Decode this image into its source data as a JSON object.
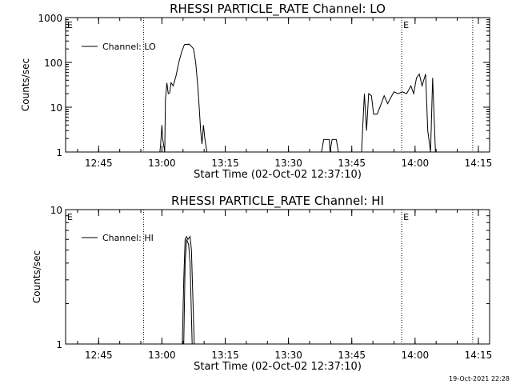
{
  "chart_data": [
    {
      "type": "line",
      "title": "RHESSI PARTICLE_RATE Channel: LO",
      "xlabel": "Start Time (02-Oct-02 12:37:10)",
      "ylabel": "Counts/sec",
      "yscale": "log",
      "xlim": [
        "12:37:10",
        "14:17:40"
      ],
      "ylim": [
        1,
        1000
      ],
      "x_ticks": [
        "12:45",
        "13:00",
        "13:15",
        "13:30",
        "13:45",
        "14:00",
        "14:15"
      ],
      "y_ticks": [
        "1",
        "10",
        "100",
        "1000"
      ],
      "legend": "top-left",
      "grid": false,
      "markers": [
        {
          "x": "12:55:40",
          "label": ""
        },
        {
          "x": "12:37:10",
          "label": "E"
        },
        {
          "x": "13:56:50",
          "label": "E"
        },
        {
          "x": "14:13:40",
          "label": ""
        }
      ],
      "series": [
        {
          "name": "Channel: LO",
          "segments": [
            [
              [
                "12:59:30",
                1
              ],
              [
                "12:59:40",
                1.4
              ],
              [
                "13:00:00",
                4.0
              ],
              [
                "13:00:10",
                2.0
              ],
              [
                "13:00:40",
                1.0
              ],
              [
                "13:00:50",
                15
              ],
              [
                "13:01:10",
                35
              ],
              [
                "13:01:30",
                20
              ],
              [
                "13:01:50",
                21
              ],
              [
                "13:02:10",
                35
              ],
              [
                "13:02:40",
                30
              ],
              [
                "13:03:20",
                50
              ],
              [
                "13:04:00",
                100
              ],
              [
                "13:04:40",
                170
              ],
              [
                "13:05:20",
                250
              ],
              [
                "13:06:30",
                255
              ],
              [
                "13:07:30",
                200
              ],
              [
                "13:08:00",
                100
              ],
              [
                "13:08:30",
                30
              ],
              [
                "13:08:50",
                10
              ],
              [
                "13:09:10",
                3.0
              ],
              [
                "13:09:30",
                1.5
              ],
              [
                "13:09:50",
                4.0
              ],
              [
                "13:10:10",
                2.0
              ],
              [
                "13:10:40",
                1.0
              ]
            ],
            [
              [
                "13:37:50",
                1
              ],
              [
                "13:38:20",
                1.9
              ],
              [
                "13:39:40",
                1.9
              ],
              [
                "13:39:50",
                1.0
              ],
              [
                "13:40:20",
                1.9
              ],
              [
                "13:41:20",
                1.9
              ],
              [
                "13:41:50",
                1.0
              ]
            ],
            [
              [
                "13:47:20",
                1
              ],
              [
                "13:47:40",
                5
              ],
              [
                "13:48:00",
                20
              ],
              [
                "13:48:30",
                3.0
              ],
              [
                "13:49:00",
                20
              ],
              [
                "13:49:40",
                18
              ],
              [
                "13:50:10",
                7
              ],
              [
                "13:51:00",
                7
              ],
              [
                "13:52:00",
                12
              ],
              [
                "13:52:40",
                18
              ],
              [
                "13:53:30",
                12
              ],
              [
                "13:54:10",
                16
              ],
              [
                "13:55:00",
                22
              ],
              [
                "13:56:00",
                20
              ],
              [
                "13:57:00",
                22
              ],
              [
                "13:58:00",
                20
              ],
              [
                "13:59:00",
                30
              ],
              [
                "13:59:40",
                20
              ],
              [
                "14:00:20",
                45
              ],
              [
                "14:01:00",
                55
              ],
              [
                "14:01:40",
                30
              ],
              [
                "14:02:30",
                55
              ],
              [
                "14:03:00",
                3.0
              ],
              [
                "14:03:40",
                1.0
              ],
              [
                "14:04:10",
                45
              ],
              [
                "14:04:50",
                1.0
              ]
            ]
          ]
        }
      ]
    },
    {
      "type": "line",
      "title": "RHESSI PARTICLE_RATE Channel: HI",
      "xlabel": "Start Time (02-Oct-02 12:37:10)",
      "ylabel": "Counts/sec",
      "yscale": "log",
      "xlim": [
        "12:37:10",
        "14:17:40"
      ],
      "ylim": [
        1,
        10
      ],
      "x_ticks": [
        "12:45",
        "13:00",
        "13:15",
        "13:30",
        "13:45",
        "14:00",
        "14:15"
      ],
      "y_ticks": [
        "1",
        "10"
      ],
      "legend": "top-left",
      "grid": false,
      "markers": [
        {
          "x": "12:55:40",
          "label": ""
        },
        {
          "x": "12:37:10",
          "label": "E"
        },
        {
          "x": "13:56:50",
          "label": "E"
        },
        {
          "x": "14:13:40",
          "label": ""
        }
      ],
      "series": [
        {
          "name": "Channel: HI",
          "segments": [
            [
              [
                "13:04:50",
                1
              ],
              [
                "13:05:10",
                3.0
              ],
              [
                "13:05:30",
                6.0
              ],
              [
                "13:05:50",
                6.3
              ],
              [
                "13:06:10",
                6.0
              ],
              [
                "13:06:40",
                6.3
              ],
              [
                "13:07:00",
                5.0
              ],
              [
                "13:07:40",
                1.0
              ]
            ],
            [
              [
                "13:05:10",
                1
              ],
              [
                "13:05:30",
                4.0
              ],
              [
                "13:05:50",
                6.0
              ],
              [
                "13:06:20",
                5.5
              ],
              [
                "13:06:40",
                4.0
              ],
              [
                "13:07:10",
                1.0
              ]
            ]
          ]
        }
      ]
    }
  ],
  "footer": {
    "timestamp": "19-Oct-2021 22:28"
  }
}
